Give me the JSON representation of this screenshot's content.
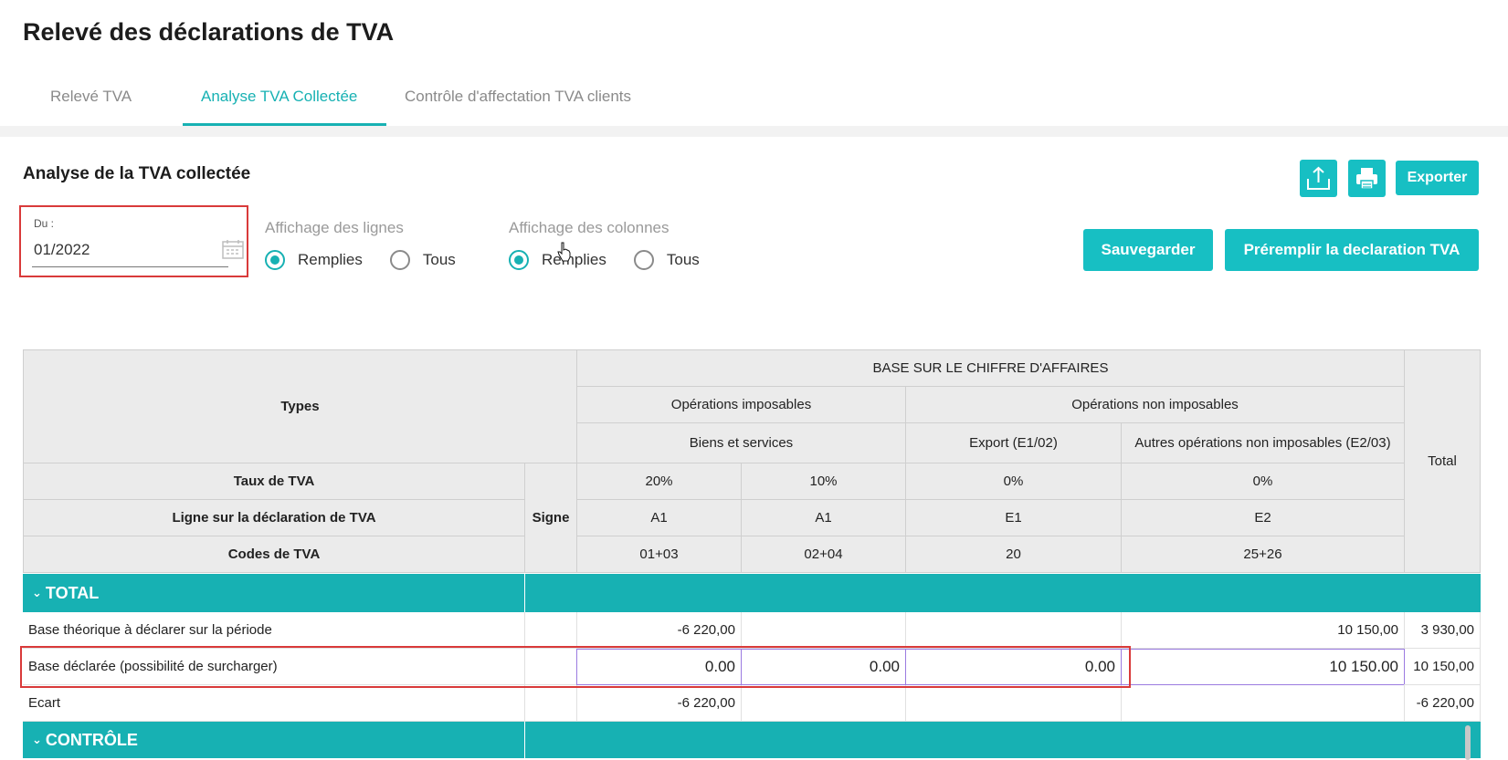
{
  "page": {
    "title": "Relevé des déclarations de TVA"
  },
  "tabs": [
    {
      "label": "Relevé TVA",
      "active": false
    },
    {
      "label": "Analyse TVA Collectée",
      "active": true
    },
    {
      "label": "Contrôle d'affectation TVA clients",
      "active": false
    }
  ],
  "section": {
    "title": "Analyse de la TVA collectée"
  },
  "date_filter": {
    "label": "Du :",
    "value": "01/2022"
  },
  "lines_display": {
    "title": "Affichage des lignes",
    "options": [
      "Remplies",
      "Tous"
    ],
    "selected": "Remplies"
  },
  "columns_display": {
    "title": "Affichage des colonnes",
    "options": [
      "Remplies",
      "Tous"
    ],
    "selected": "Remplies"
  },
  "toolbar": {
    "upload_icon": "upload-icon",
    "print_icon": "printer-icon",
    "export_label": "Exporter",
    "save_label": "Sauvegarder",
    "prefill_label": "Préremplir la declaration TVA"
  },
  "colors": {
    "accent": "#17b1b3",
    "button": "#17bfc3",
    "highlight": "#d93a3a",
    "input_border": "#9b7be0"
  },
  "table": {
    "header": {
      "types": "Types",
      "base_ca": "BASE SUR LE CHIFFRE D'AFFAIRES",
      "op_imposables": "Opérations imposables",
      "op_non_imposables": "Opérations non imposables",
      "biens_services": "Biens et services",
      "export": "Export (E1/02)",
      "autres": "Autres opérations non imposables (E2/03)",
      "total": "Total",
      "signe": "Signe",
      "taux_label": "Taux de TVA",
      "ligne_label": "Ligne sur la déclaration de TVA",
      "codes_label": "Codes de TVA",
      "taux": [
        "20%",
        "10%",
        "0%",
        "0%"
      ],
      "lignes": [
        "A1",
        "A1",
        "E1",
        "E2"
      ],
      "codes": [
        "01+03",
        "02+04",
        "20",
        "25+26"
      ]
    },
    "sections": [
      {
        "title": "TOTAL",
        "rows": [
          {
            "label": "Base théorique à déclarer sur la période",
            "values": [
              "-6 220,00",
              "",
              "",
              "10 150,00"
            ],
            "total": "3 930,00",
            "editable": false
          },
          {
            "label": "Base déclarée (possibilité de surcharger)",
            "values": [
              "0.00",
              "0.00",
              "0.00",
              "10 150.00"
            ],
            "total": "10 150,00",
            "editable": true
          },
          {
            "label": "Ecart",
            "values": [
              "-6 220,00",
              "",
              "",
              ""
            ],
            "total": "-6 220,00",
            "editable": false
          }
        ]
      },
      {
        "title": "CONTRÔLE",
        "rows": []
      }
    ]
  }
}
